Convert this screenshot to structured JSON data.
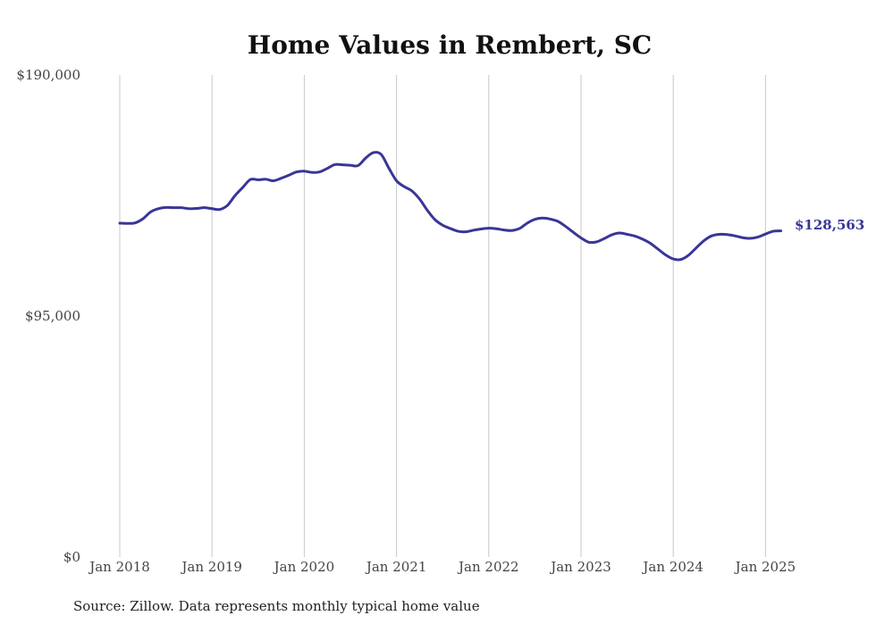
{
  "chart_data": {
    "type": "line",
    "title": "Home Values in Rembert, SC",
    "source": "Source: Zillow. Data represents monthly typical home value",
    "xlabel": "",
    "ylabel": "",
    "ylim": [
      0,
      190000
    ],
    "y_ticks": [
      {
        "value": 0,
        "label": "$0"
      },
      {
        "value": 95000,
        "label": "$95,000"
      },
      {
        "value": 190000,
        "label": "$190,000"
      }
    ],
    "x_ticks": [
      {
        "value": "2018-01",
        "label": "Jan 2018"
      },
      {
        "value": "2019-01",
        "label": "Jan 2019"
      },
      {
        "value": "2020-01",
        "label": "Jan 2020"
      },
      {
        "value": "2021-01",
        "label": "Jan 2021"
      },
      {
        "value": "2022-01",
        "label": "Jan 2022"
      },
      {
        "value": "2023-01",
        "label": "Jan 2023"
      },
      {
        "value": "2024-01",
        "label": "Jan 2024"
      },
      {
        "value": "2025-01",
        "label": "Jan 2025"
      }
    ],
    "grid": "vertical",
    "line_color": "#3a3597",
    "end_label": "$128,563",
    "series": [
      {
        "x": [
          "2018-01",
          "2018-02",
          "2018-03",
          "2018-04",
          "2018-05",
          "2018-06",
          "2018-07",
          "2018-08",
          "2018-09",
          "2018-10",
          "2018-11",
          "2018-12",
          "2019-01",
          "2019-02",
          "2019-03",
          "2019-04",
          "2019-05",
          "2019-06",
          "2019-07",
          "2019-08",
          "2019-09",
          "2019-10",
          "2019-11",
          "2019-12",
          "2020-01",
          "2020-02",
          "2020-03",
          "2020-04",
          "2020-05",
          "2020-06",
          "2020-07",
          "2020-08",
          "2020-09",
          "2020-10",
          "2020-11",
          "2020-12",
          "2021-01",
          "2021-02",
          "2021-03",
          "2021-04",
          "2021-05",
          "2021-06",
          "2021-07",
          "2021-08",
          "2021-09",
          "2021-10",
          "2021-11",
          "2021-12",
          "2022-01",
          "2022-02",
          "2022-03",
          "2022-04",
          "2022-05",
          "2022-06",
          "2022-07",
          "2022-08",
          "2022-09",
          "2022-10",
          "2022-11",
          "2022-12",
          "2023-01",
          "2023-02",
          "2023-03",
          "2023-04",
          "2023-05",
          "2023-06",
          "2023-07",
          "2023-08",
          "2023-09",
          "2023-10",
          "2023-11",
          "2023-12",
          "2024-01",
          "2024-02",
          "2024-03",
          "2024-04",
          "2024-05",
          "2024-06",
          "2024-07",
          "2024-08",
          "2024-09",
          "2024-10",
          "2024-11",
          "2024-12",
          "2025-01",
          "2025-02",
          "2025-03"
        ],
        "values": [
          131600,
          131500,
          131700,
          133300,
          136000,
          137300,
          137800,
          137700,
          137700,
          137300,
          137400,
          137700,
          137300,
          137000,
          138600,
          142500,
          145700,
          148800,
          148700,
          148900,
          148300,
          149300,
          150500,
          151800,
          152100,
          151600,
          151800,
          153200,
          154700,
          154600,
          154400,
          154300,
          157300,
          159400,
          158700,
          153300,
          148300,
          146000,
          144300,
          141100,
          136700,
          133000,
          130800,
          129500,
          128400,
          128200,
          128800,
          129300,
          129600,
          129400,
          128900,
          128700,
          129500,
          131600,
          133100,
          133600,
          133200,
          132300,
          130300,
          128000,
          125800,
          124100,
          124200,
          125500,
          127000,
          127700,
          127200,
          126500,
          125300,
          123700,
          121400,
          119100,
          117500,
          117300,
          119000,
          121900,
          124700,
          126600,
          127200,
          127100,
          126600,
          125900,
          125600,
          126100,
          127300,
          128400,
          128563
        ]
      }
    ]
  }
}
